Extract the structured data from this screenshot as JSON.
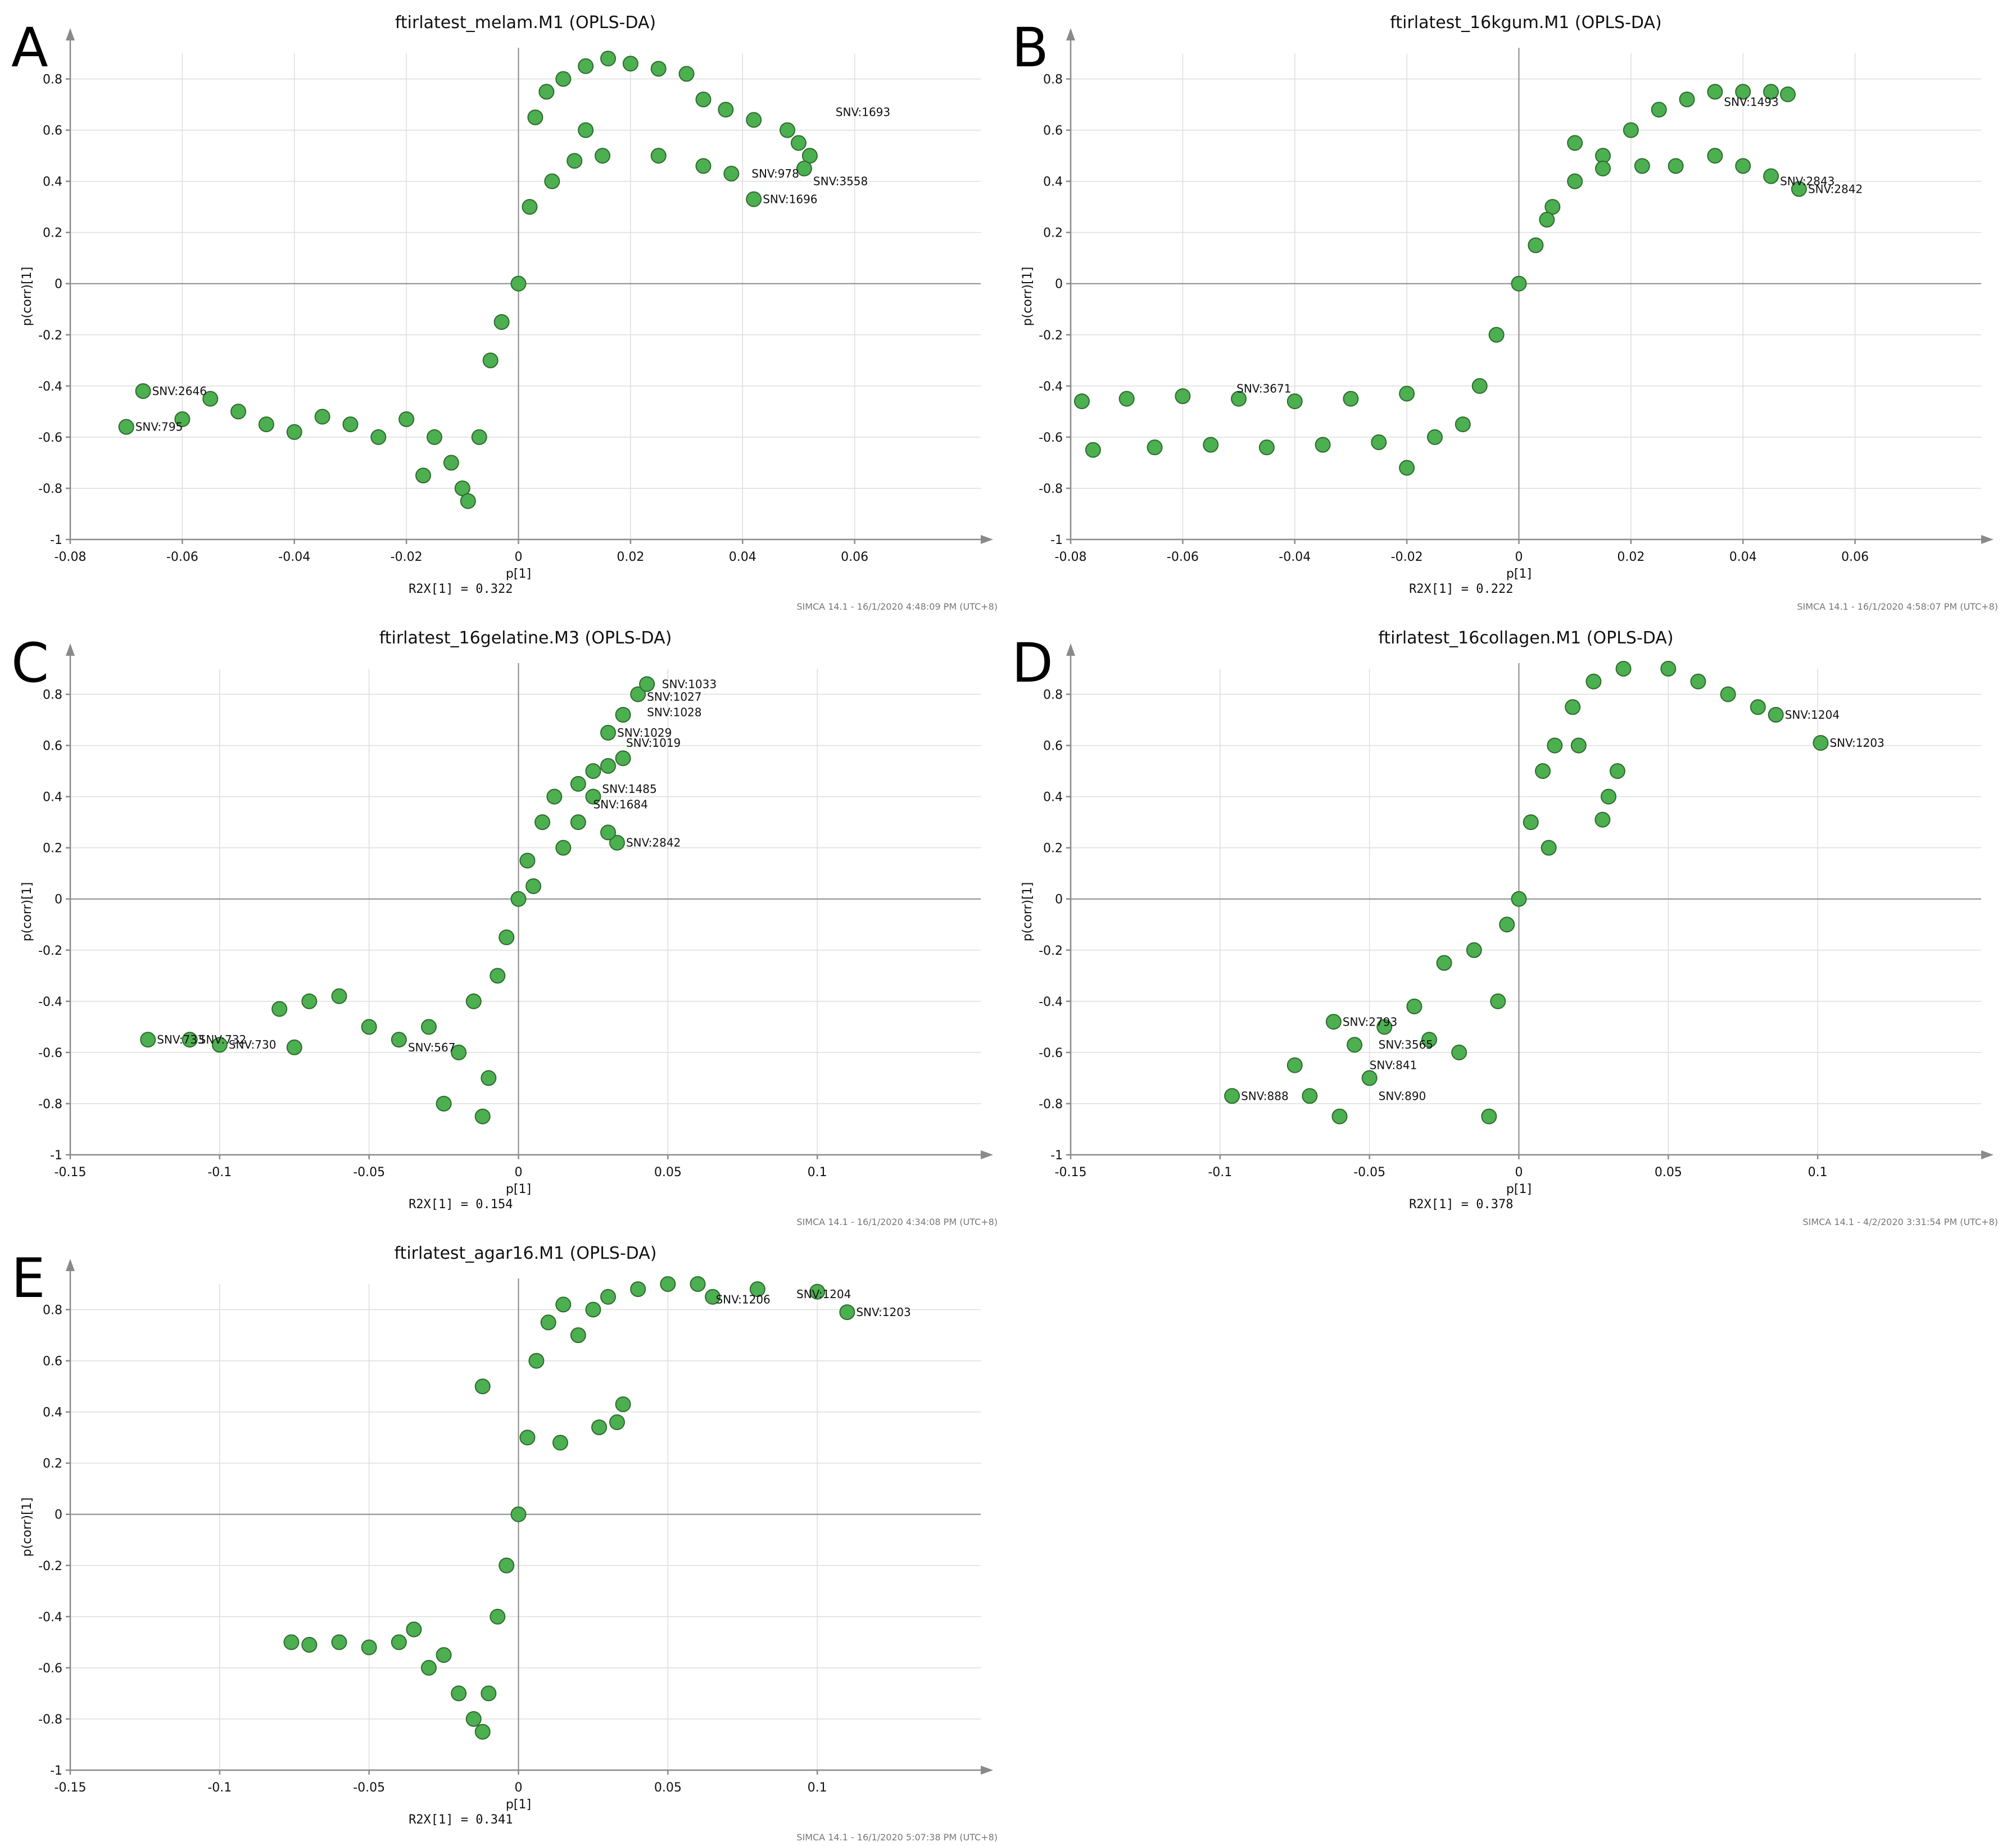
{
  "colors": {
    "point_fill": "#4caf50",
    "point_stroke": "#2e6b2e",
    "axis": "#8a8a8a",
    "grid": "#dedede"
  },
  "chart_data": [
    {
      "panel": "A",
      "type": "scatter",
      "title": "ftirlatest_melam.M1 (OPLS-DA)",
      "xlabel": "p[1]",
      "ylabel": "p(corr)[1]",
      "r2x": "R2X[1] = 0.322",
      "footer": "SIMCA 14.1 - 16/1/2020 4:48:09 PM (UTC+8)",
      "xlim": [
        -0.08,
        0.08
      ],
      "ylim": [
        -1,
        0.9
      ],
      "xticks": [
        "-0.08",
        "-0.06",
        "-0.04",
        "-0.02",
        "0",
        "0.02",
        "0.04",
        "0.06"
      ],
      "xtick_values": [
        -0.08,
        -0.06,
        -0.04,
        -0.02,
        0,
        0.02,
        0.04,
        0.06
      ],
      "yticks": [
        "-1",
        "-0.8",
        "-0.6",
        "-0.4",
        "-0.2",
        "0",
        "0.2",
        "0.4",
        "0.6",
        "0.8"
      ],
      "ytick_values": [
        -1,
        -0.8,
        -0.6,
        -0.4,
        -0.2,
        0,
        0.2,
        0.4,
        0.6,
        0.8
      ],
      "points": [
        [
          -0.067,
          -0.42
        ],
        [
          -0.07,
          -0.56
        ],
        [
          -0.06,
          -0.53
        ],
        [
          -0.055,
          -0.45
        ],
        [
          -0.05,
          -0.5
        ],
        [
          -0.045,
          -0.55
        ],
        [
          -0.04,
          -0.58
        ],
        [
          -0.035,
          -0.52
        ],
        [
          -0.03,
          -0.55
        ],
        [
          -0.025,
          -0.6
        ],
        [
          -0.02,
          -0.53
        ],
        [
          -0.015,
          -0.6
        ],
        [
          -0.017,
          -0.75
        ],
        [
          -0.012,
          -0.7
        ],
        [
          -0.01,
          -0.8
        ],
        [
          -0.009,
          -0.85
        ],
        [
          -0.007,
          -0.6
        ],
        [
          -0.005,
          -0.3
        ],
        [
          -0.003,
          -0.15
        ],
        [
          0,
          0
        ],
        [
          0.002,
          0.3
        ],
        [
          0.003,
          0.65
        ],
        [
          0.005,
          0.75
        ],
        [
          0.008,
          0.8
        ],
        [
          0.012,
          0.85
        ],
        [
          0.016,
          0.88
        ],
        [
          0.02,
          0.86
        ],
        [
          0.025,
          0.84
        ],
        [
          0.03,
          0.82
        ],
        [
          0.033,
          0.72
        ],
        [
          0.037,
          0.68
        ],
        [
          0.042,
          0.64
        ],
        [
          0.048,
          0.6
        ],
        [
          0.05,
          0.55
        ],
        [
          0.052,
          0.5
        ],
        [
          0.051,
          0.45
        ],
        [
          0.042,
          0.33
        ],
        [
          0.038,
          0.43
        ],
        [
          0.033,
          0.46
        ],
        [
          0.025,
          0.5
        ],
        [
          0.015,
          0.5
        ],
        [
          0.01,
          0.48
        ],
        [
          0.006,
          0.4
        ],
        [
          0.012,
          0.6
        ]
      ],
      "labels": [
        {
          "text": "SNV:2646",
          "x": -0.067,
          "y": -0.42
        },
        {
          "text": "SNV:795",
          "x": -0.07,
          "y": -0.56
        },
        {
          "text": "SNV:1696",
          "x": 0.042,
          "y": 0.33
        },
        {
          "text": "SNV:3558",
          "x": 0.051,
          "y": 0.4
        },
        {
          "text": "SNV:978",
          "x": 0.04,
          "y": 0.43
        },
        {
          "text": "SNV:1693",
          "x": 0.055,
          "y": 0.67
        }
      ]
    },
    {
      "panel": "B",
      "type": "scatter",
      "title": "ftirlatest_16kgum.M1 (OPLS-DA)",
      "xlabel": "p[1]",
      "ylabel": "p(corr)[1]",
      "r2x": "R2X[1] = 0.222",
      "footer": "SIMCA 14.1 - 16/1/2020 4:58:07 PM (UTC+8)",
      "xlim": [
        -0.08,
        0.08
      ],
      "ylim": [
        -1,
        0.9
      ],
      "xticks": [
        "-0.08",
        "-0.06",
        "-0.04",
        "-0.02",
        "0",
        "0.02",
        "0.04",
        "0.06"
      ],
      "xtick_values": [
        -0.08,
        -0.06,
        -0.04,
        -0.02,
        0,
        0.02,
        0.04,
        0.06
      ],
      "yticks": [
        "-1",
        "-0.8",
        "-0.6",
        "-0.4",
        "-0.2",
        "0",
        "0.2",
        "0.4",
        "0.6",
        "0.8"
      ],
      "ytick_values": [
        -1,
        -0.8,
        -0.6,
        -0.4,
        -0.2,
        0,
        0.2,
        0.4,
        0.6,
        0.8
      ],
      "points": [
        [
          -0.078,
          -0.46
        ],
        [
          -0.07,
          -0.45
        ],
        [
          -0.06,
          -0.44
        ],
        [
          -0.05,
          -0.45
        ],
        [
          -0.04,
          -0.46
        ],
        [
          -0.03,
          -0.45
        ],
        [
          -0.02,
          -0.43
        ],
        [
          -0.076,
          -0.65
        ],
        [
          -0.065,
          -0.64
        ],
        [
          -0.055,
          -0.63
        ],
        [
          -0.045,
          -0.64
        ],
        [
          -0.035,
          -0.63
        ],
        [
          -0.025,
          -0.62
        ],
        [
          -0.02,
          -0.72
        ],
        [
          -0.015,
          -0.6
        ],
        [
          -0.01,
          -0.55
        ],
        [
          -0.007,
          -0.4
        ],
        [
          -0.004,
          -0.2
        ],
        [
          0,
          0
        ],
        [
          0.003,
          0.15
        ],
        [
          0.006,
          0.3
        ],
        [
          0.01,
          0.4
        ],
        [
          0.015,
          0.5
        ],
        [
          0.02,
          0.6
        ],
        [
          0.025,
          0.68
        ],
        [
          0.03,
          0.72
        ],
        [
          0.035,
          0.75
        ],
        [
          0.04,
          0.75
        ],
        [
          0.045,
          0.75
        ],
        [
          0.048,
          0.74
        ],
        [
          0.05,
          0.37
        ],
        [
          0.045,
          0.42
        ],
        [
          0.04,
          0.46
        ],
        [
          0.035,
          0.5
        ],
        [
          0.028,
          0.46
        ],
        [
          0.022,
          0.46
        ],
        [
          0.015,
          0.45
        ],
        [
          0.01,
          0.55
        ],
        [
          0.005,
          0.25
        ]
      ],
      "labels": [
        {
          "text": "SNV:3671",
          "x": -0.052,
          "y": -0.41
        },
        {
          "text": "SNV:1493",
          "x": 0.035,
          "y": 0.71
        },
        {
          "text": "SNV:2842",
          "x": 0.05,
          "y": 0.37
        },
        {
          "text": "SNV:2843",
          "x": 0.045,
          "y": 0.4
        }
      ]
    },
    {
      "panel": "C",
      "type": "scatter",
      "title": "ftirlatest_16gelatine.M3 (OPLS-DA)",
      "xlabel": "p[1]",
      "ylabel": "p(corr)[1]",
      "r2x": "R2X[1] = 0.154",
      "footer": "SIMCA 14.1 - 16/1/2020 4:34:08 PM (UTC+8)",
      "xlim": [
        -0.15,
        0.15
      ],
      "ylim": [
        -1,
        0.9
      ],
      "xticks": [
        "-0.15",
        "-0.1",
        "-0.05",
        "0",
        "0.05",
        "0.1"
      ],
      "xtick_values": [
        -0.15,
        -0.1,
        -0.05,
        0,
        0.05,
        0.1
      ],
      "yticks": [
        "-1",
        "-0.8",
        "-0.6",
        "-0.4",
        "-0.2",
        "0",
        "0.2",
        "0.4",
        "0.6",
        "0.8"
      ],
      "ytick_values": [
        -1,
        -0.8,
        -0.6,
        -0.4,
        -0.2,
        0,
        0.2,
        0.4,
        0.6,
        0.8
      ],
      "points": [
        [
          -0.124,
          -0.55
        ],
        [
          -0.11,
          -0.55
        ],
        [
          -0.1,
          -0.57
        ],
        [
          -0.08,
          -0.43
        ],
        [
          -0.075,
          -0.58
        ],
        [
          -0.07,
          -0.4
        ],
        [
          -0.06,
          -0.38
        ],
        [
          -0.05,
          -0.5
        ],
        [
          -0.04,
          -0.55
        ],
        [
          -0.03,
          -0.5
        ],
        [
          -0.025,
          -0.8
        ],
        [
          -0.02,
          -0.6
        ],
        [
          -0.015,
          -0.4
        ],
        [
          -0.012,
          -0.85
        ],
        [
          -0.01,
          -0.7
        ],
        [
          -0.007,
          -0.3
        ],
        [
          -0.004,
          -0.15
        ],
        [
          0,
          0
        ],
        [
          0.003,
          0.15
        ],
        [
          0.008,
          0.3
        ],
        [
          0.012,
          0.4
        ],
        [
          0.02,
          0.45
        ],
        [
          0.025,
          0.5
        ],
        [
          0.03,
          0.52
        ],
        [
          0.035,
          0.55
        ],
        [
          0.03,
          0.65
        ],
        [
          0.035,
          0.72
        ],
        [
          0.04,
          0.8
        ],
        [
          0.043,
          0.84
        ],
        [
          0.033,
          0.22
        ],
        [
          0.03,
          0.26
        ],
        [
          0.025,
          0.4
        ],
        [
          0.02,
          0.3
        ],
        [
          0.015,
          0.2
        ],
        [
          0.005,
          0.05
        ]
      ],
      "labels": [
        {
          "text": "SNV:1033",
          "x": 0.045,
          "y": 0.84
        },
        {
          "text": "SNV:1027",
          "x": 0.04,
          "y": 0.79
        },
        {
          "text": "SNV:1028",
          "x": 0.04,
          "y": 0.73
        },
        {
          "text": "SNV:1029",
          "x": 0.03,
          "y": 0.65
        },
        {
          "text": "SNV:1019",
          "x": 0.033,
          "y": 0.61
        },
        {
          "text": "SNV:1485",
          "x": 0.025,
          "y": 0.43
        },
        {
          "text": "SNV:1684",
          "x": 0.022,
          "y": 0.37
        },
        {
          "text": "SNV:2842",
          "x": 0.033,
          "y": 0.22
        },
        {
          "text": "SNV:733",
          "x": -0.124,
          "y": -0.55
        },
        {
          "text": "SNV:732",
          "x": -0.11,
          "y": -0.55
        },
        {
          "text": "SNV:730",
          "x": -0.1,
          "y": -0.57
        },
        {
          "text": "SNV:567",
          "x": -0.04,
          "y": -0.58
        }
      ]
    },
    {
      "panel": "D",
      "type": "scatter",
      "title": "ftirlatest_16collagen.M1 (OPLS-DA)",
      "xlabel": "p[1]",
      "ylabel": "p(corr)[1]",
      "r2x": "R2X[1] = 0.378",
      "footer": "SIMCA 14.1 - 4/2/2020 3:31:54 PM (UTC+8)",
      "xlim": [
        -0.15,
        0.15
      ],
      "ylim": [
        -1,
        0.9
      ],
      "xticks": [
        "-0.15",
        "-0.1",
        "-0.05",
        "0",
        "0.05",
        "0.1"
      ],
      "xtick_values": [
        -0.15,
        -0.1,
        -0.05,
        0,
        0.05,
        0.1
      ],
      "yticks": [
        "-1",
        "-0.8",
        "-0.6",
        "-0.4",
        "-0.2",
        "0",
        "0.2",
        "0.4",
        "0.6",
        "0.8"
      ],
      "ytick_values": [
        -1,
        -0.8,
        -0.6,
        -0.4,
        -0.2,
        0,
        0.2,
        0.4,
        0.6,
        0.8
      ],
      "points": [
        [
          -0.096,
          -0.77
        ],
        [
          -0.075,
          -0.65
        ],
        [
          -0.07,
          -0.77
        ],
        [
          -0.062,
          -0.48
        ],
        [
          -0.06,
          -0.85
        ],
        [
          -0.055,
          -0.57
        ],
        [
          -0.05,
          -0.7
        ],
        [
          -0.045,
          -0.5
        ],
        [
          -0.035,
          -0.42
        ],
        [
          -0.03,
          -0.55
        ],
        [
          -0.025,
          -0.25
        ],
        [
          -0.02,
          -0.6
        ],
        [
          -0.015,
          -0.2
        ],
        [
          -0.01,
          -0.85
        ],
        [
          -0.007,
          -0.4
        ],
        [
          -0.004,
          -0.1
        ],
        [
          0,
          0
        ],
        [
          0.004,
          0.3
        ],
        [
          0.008,
          0.5
        ],
        [
          0.012,
          0.6
        ],
        [
          0.018,
          0.75
        ],
        [
          0.025,
          0.85
        ],
        [
          0.035,
          0.9
        ],
        [
          0.05,
          0.9
        ],
        [
          0.06,
          0.85
        ],
        [
          0.07,
          0.8
        ],
        [
          0.08,
          0.75
        ],
        [
          0.086,
          0.72
        ],
        [
          0.101,
          0.61
        ],
        [
          0.03,
          0.4
        ],
        [
          0.028,
          0.31
        ],
        [
          0.033,
          0.5
        ],
        [
          0.02,
          0.6
        ],
        [
          0.01,
          0.2
        ]
      ],
      "labels": [
        {
          "text": "SNV:1204",
          "x": 0.086,
          "y": 0.72
        },
        {
          "text": "SNV:1203",
          "x": 0.101,
          "y": 0.61
        },
        {
          "text": "SNV:2793",
          "x": -0.062,
          "y": -0.48
        },
        {
          "text": "SNV:3565",
          "x": -0.05,
          "y": -0.57
        },
        {
          "text": "SNV:841",
          "x": -0.053,
          "y": -0.65
        },
        {
          "text": "SNV:888",
          "x": -0.096,
          "y": -0.77
        },
        {
          "text": "SNV:890",
          "x": -0.05,
          "y": -0.77
        }
      ]
    },
    {
      "panel": "E",
      "type": "scatter",
      "title": "ftirlatest_agar16.M1 (OPLS-DA)",
      "xlabel": "p[1]",
      "ylabel": "p(corr)[1]",
      "r2x": "R2X[1] = 0.341",
      "footer": "SIMCA 14.1 - 16/1/2020 5:07:38 PM (UTC+8)",
      "xlim": [
        -0.15,
        0.15
      ],
      "ylim": [
        -1,
        0.9
      ],
      "xticks": [
        "-0.15",
        "-0.1",
        "-0.05",
        "0",
        "0.05",
        "0.1"
      ],
      "xtick_values": [
        -0.15,
        -0.1,
        -0.05,
        0,
        0.05,
        0.1
      ],
      "yticks": [
        "-1",
        "-0.8",
        "-0.6",
        "-0.4",
        "-0.2",
        "0",
        "0.2",
        "0.4",
        "0.6",
        "0.8"
      ],
      "ytick_values": [
        -1,
        -0.8,
        -0.6,
        -0.4,
        -0.2,
        0,
        0.2,
        0.4,
        0.6,
        0.8
      ],
      "points": [
        [
          -0.076,
          -0.5
        ],
        [
          -0.07,
          -0.51
        ],
        [
          -0.06,
          -0.5
        ],
        [
          -0.05,
          -0.52
        ],
        [
          -0.04,
          -0.5
        ],
        [
          -0.035,
          -0.45
        ],
        [
          -0.03,
          -0.6
        ],
        [
          -0.025,
          -0.55
        ],
        [
          -0.02,
          -0.7
        ],
        [
          -0.015,
          -0.8
        ],
        [
          -0.012,
          -0.85
        ],
        [
          -0.01,
          -0.7
        ],
        [
          -0.007,
          -0.4
        ],
        [
          -0.004,
          -0.2
        ],
        [
          0,
          0
        ],
        [
          0.003,
          0.3
        ],
        [
          0.006,
          0.6
        ],
        [
          0.01,
          0.75
        ],
        [
          0.015,
          0.82
        ],
        [
          0.02,
          0.7
        ],
        [
          0.025,
          0.8
        ],
        [
          0.03,
          0.85
        ],
        [
          0.04,
          0.88
        ],
        [
          0.05,
          0.9
        ],
        [
          0.06,
          0.9
        ],
        [
          0.08,
          0.88
        ],
        [
          0.1,
          0.87
        ],
        [
          0.11,
          0.79
        ],
        [
          0.065,
          0.85
        ],
        [
          0.035,
          0.43
        ],
        [
          0.033,
          0.36
        ],
        [
          0.027,
          0.34
        ],
        [
          0.014,
          0.28
        ],
        [
          -0.012,
          0.5
        ]
      ],
      "labels": [
        {
          "text": "SNV:1204",
          "x": 0.09,
          "y": 0.86
        },
        {
          "text": "SNV:1203",
          "x": 0.11,
          "y": 0.79
        },
        {
          "text": "SNV:1206",
          "x": 0.063,
          "y": 0.84
        }
      ]
    }
  ]
}
